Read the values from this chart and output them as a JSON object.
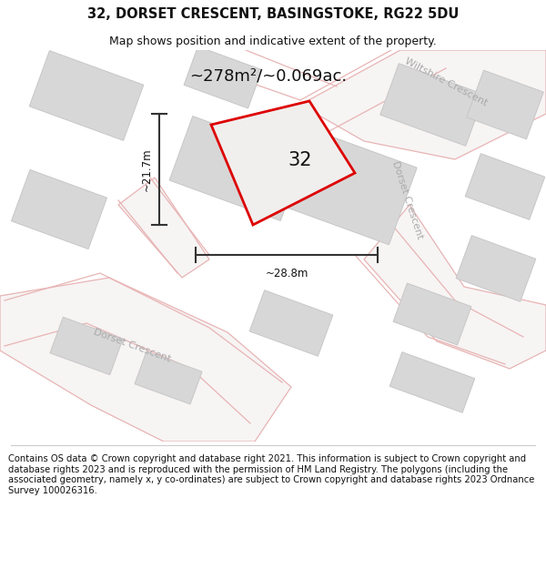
{
  "title": "32, DORSET CRESCENT, BASINGSTOKE, RG22 5DU",
  "subtitle": "Map shows position and indicative extent of the property.",
  "footer": "Contains OS data © Crown copyright and database right 2021. This information is subject to Crown copyright and database rights 2023 and is reproduced with the permission of HM Land Registry. The polygons (including the associated geometry, namely x, y co-ordinates) are subject to Crown copyright and database rights 2023 Ordnance Survey 100026316.",
  "area_label": "~278m²/~0.069ac.",
  "width_label": "~28.8m",
  "height_label": "~21.7m",
  "plot_number": "32",
  "map_bg": "#faf9f9",
  "plot_fill": "#f5f5f5",
  "plot_edge_color": "#dd0000",
  "road_outline_color": "#e8b4b4",
  "building_fill": "#d8d7d7",
  "building_edge": "#c8c7c7",
  "dimension_color": "#333333",
  "street_label_color": "#aaaaaa",
  "title_fontsize": 10.5,
  "subtitle_fontsize": 9,
  "footer_fontsize": 7.2,
  "map_xlim": [
    0,
    600
  ],
  "map_ylim": [
    0,
    430
  ]
}
